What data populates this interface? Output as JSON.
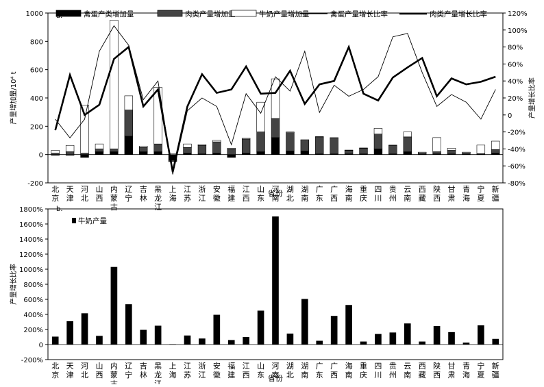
{
  "provinces": [
    "北京",
    "天津",
    "河北",
    "山西",
    "内蒙古",
    "辽宁",
    "吉林",
    "黑龙江",
    "上海",
    "江苏",
    "浙江",
    "安徽",
    "福建",
    "江西",
    "山东",
    "河南",
    "湖北",
    "湖南",
    "广东",
    "广西",
    "海南",
    "重庆",
    "四川",
    "贵州",
    "云南",
    "西藏",
    "陕西",
    "甘肃",
    "青海",
    "宁夏",
    "新疆"
  ],
  "chart_data": [
    {
      "type": "bar",
      "panel_label": "a.",
      "xlabel": "省份",
      "ylabel_left": "产量增加量/10⁴ t",
      "ylabel_right": "产量增长比率",
      "ylim_left": [
        -200,
        1000
      ],
      "ylim_right": [
        -0.8,
        1.2
      ],
      "yticks_left": [
        "-200",
        "0",
        "200",
        "400",
        "600",
        "800",
        "1000"
      ],
      "yticks_right": [
        "-80%",
        "-60%",
        "-40%",
        "-20%",
        "0",
        "20%",
        "40%",
        "60%",
        "80%",
        "100%",
        "120%"
      ],
      "legend": [
        "禽蛋产类增加量",
        "肉类产量增加量",
        "牛奶产量增加量",
        "禽蛋产量增长比率",
        "肉类产量增长比率"
      ],
      "legend_position": "top",
      "series": [
        {
          "name": "禽蛋产类增加量",
          "kind": "stacked-bar",
          "color": "#000000",
          "values": [
            -5,
            -5,
            -20,
            20,
            20,
            130,
            20,
            20,
            -40,
            10,
            5,
            10,
            -20,
            10,
            20,
            120,
            25,
            25,
            5,
            5,
            5,
            5,
            40,
            5,
            20,
            2,
            5,
            5,
            2,
            2,
            10
          ]
        },
        {
          "name": "肉类产量增加量",
          "kind": "stacked-bar",
          "color": "#444444",
          "values": [
            10,
            20,
            10,
            20,
            20,
            185,
            30,
            55,
            -10,
            40,
            60,
            80,
            40,
            100,
            140,
            135,
            130,
            75,
            120,
            110,
            25,
            40,
            105,
            60,
            105,
            10,
            15,
            25,
            10,
            5,
            25
          ]
        },
        {
          "name": "牛奶产量增加量",
          "kind": "stacked-bar",
          "color": "#ffffff",
          "values": [
            20,
            45,
            340,
            35,
            910,
            100,
            10,
            400,
            5,
            25,
            5,
            10,
            5,
            5,
            210,
            280,
            5,
            5,
            2,
            5,
            2,
            2,
            40,
            2,
            35,
            5,
            100,
            15,
            5,
            60,
            60
          ]
        },
        {
          "name": "禽蛋产量增长比率",
          "kind": "line",
          "color": "#000000",
          "values": [
            -0.05,
            -0.27,
            -0.05,
            0.75,
            1.05,
            0.82,
            0.18,
            0.4,
            -0.7,
            0.05,
            0.2,
            0.1,
            -0.35,
            0.25,
            0.02,
            0.45,
            0.28,
            0.75,
            0.03,
            0.35,
            0.22,
            0.3,
            0.45,
            0.92,
            0.96,
            0.5,
            0.1,
            0.24,
            0.15,
            -0.05,
            0.3
          ]
        },
        {
          "name": "肉类产量增长比率",
          "kind": "line",
          "color": "#000000",
          "values": [
            -0.18,
            0.47,
            0.0,
            0.12,
            0.66,
            0.8,
            0.1,
            0.3,
            -0.67,
            0.1,
            0.48,
            0.26,
            0.3,
            0.57,
            0.25,
            0.26,
            0.52,
            0.13,
            0.36,
            0.4,
            0.8,
            0.25,
            0.17,
            0.44,
            0.56,
            0.67,
            0.22,
            0.43,
            0.36,
            0.39,
            0.45
          ]
        }
      ]
    },
    {
      "type": "bar",
      "panel_label": "b.",
      "xlabel": "省份",
      "ylabel": "产量增长比率",
      "ylim": [
        -2,
        18
      ],
      "yticks": [
        "-200%",
        "0",
        "200%",
        "400%",
        "600%",
        "800%",
        "1000%",
        "1200%",
        "1400%",
        "1600%",
        "1800%"
      ],
      "legend": [
        "牛奶产量"
      ],
      "legend_position": "top-left",
      "series": [
        {
          "name": "牛奶产量",
          "color": "#000000",
          "values": [
            1.05,
            3.1,
            4.15,
            1.15,
            10.3,
            5.35,
            1.95,
            2.5,
            0.05,
            1.2,
            0.8,
            3.95,
            0.6,
            1.0,
            4.5,
            17.0,
            1.45,
            6.05,
            0.5,
            3.8,
            5.25,
            0.4,
            1.4,
            1.6,
            2.8,
            0.4,
            2.45,
            1.65,
            0.25,
            2.55,
            0.75
          ]
        }
      ]
    }
  ]
}
